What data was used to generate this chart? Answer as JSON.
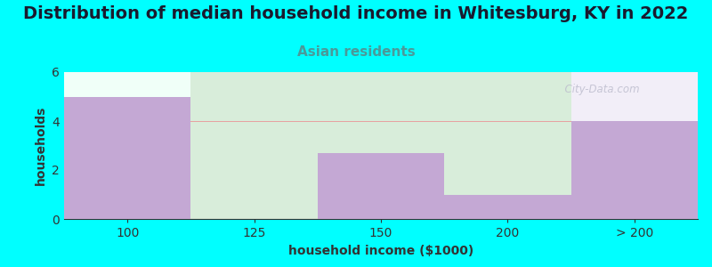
{
  "title": "Distribution of median household income in Whitesburg, KY in 2022",
  "subtitle": "Asian residents",
  "xlabel": "household income ($1000)",
  "ylabel": "households",
  "background_color": "#00FFFF",
  "bar_color": "#C4A8D4",
  "categories": [
    "100",
    "125",
    "150",
    "200",
    "> 200"
  ],
  "bar_heights": [
    5,
    0,
    2.7,
    1,
    4
  ],
  "ylim": [
    0,
    6
  ],
  "yticks": [
    0,
    2,
    4,
    6
  ],
  "watermark": "  City-Data.com",
  "title_fontsize": 14,
  "subtitle_fontsize": 11,
  "label_fontsize": 10,
  "tick_fontsize": 10
}
